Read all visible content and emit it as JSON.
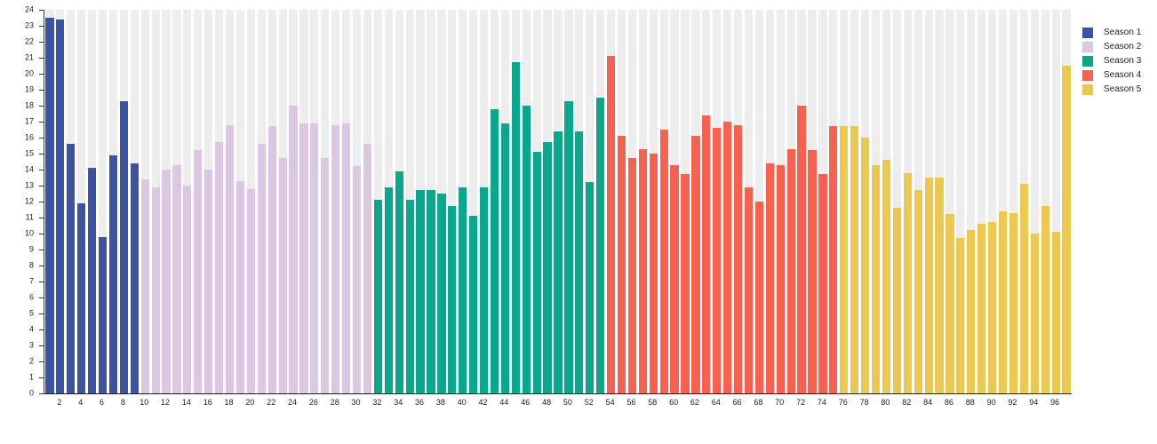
{
  "chart_data": {
    "type": "bar",
    "title": "",
    "xlabel": "",
    "ylabel": "",
    "ylim": [
      0,
      24
    ],
    "ytick_step": 1,
    "xtick_step": 2,
    "x_range": [
      1,
      97
    ],
    "grid": "vertical light-gray column tracks behind each bar, no horizontal gridlines",
    "legend_position": "top-right",
    "track_color": "#ededed",
    "axis_color": "#1f1f1f",
    "series": [
      {
        "name": "Season 1",
        "color": "#3c52a3",
        "start_episode": 1,
        "values": [
          23.5,
          23.4,
          15.6,
          11.9,
          14.1,
          9.8,
          14.9,
          18.3,
          14.4
        ]
      },
      {
        "name": "Season 2",
        "color": "#dbc7e2",
        "start_episode": 10,
        "values": [
          13.4,
          12.9,
          14.0,
          14.3,
          13.0,
          15.2,
          14.0,
          15.7,
          16.8,
          13.3,
          12.8,
          15.6,
          16.7,
          14.7,
          18.0,
          16.9,
          16.9,
          14.7,
          16.8,
          16.9,
          14.2,
          15.6
        ]
      },
      {
        "name": "Season 3",
        "color": "#09a78b",
        "start_episode": 32,
        "values": [
          12.1,
          12.9,
          13.9,
          12.1,
          12.7,
          12.7,
          12.5,
          11.7,
          12.9,
          11.1,
          12.9,
          17.8,
          16.9,
          20.7,
          18.0,
          15.1,
          15.7,
          16.4,
          18.3,
          16.4,
          13.2,
          18.5
        ]
      },
      {
        "name": "Season 4",
        "color": "#f7614f",
        "start_episode": 54,
        "values": [
          21.1,
          16.1,
          14.7,
          15.3,
          15.0,
          16.5,
          14.3,
          13.7,
          16.1,
          17.4,
          16.6,
          17.0,
          16.8,
          12.9,
          12.0,
          14.4,
          14.3,
          15.3,
          18.0,
          15.2,
          13.7,
          16.7
        ]
      },
      {
        "name": "Season 5",
        "color": "#ebc852",
        "start_episode": 76,
        "values": [
          16.7,
          16.7,
          16.0,
          14.3,
          14.6,
          11.6,
          13.8,
          12.7,
          13.5,
          13.5,
          11.2,
          9.7,
          10.2,
          10.6,
          10.7,
          11.4,
          11.3,
          13.1,
          10.0,
          11.7,
          10.1,
          20.5
        ]
      }
    ]
  }
}
